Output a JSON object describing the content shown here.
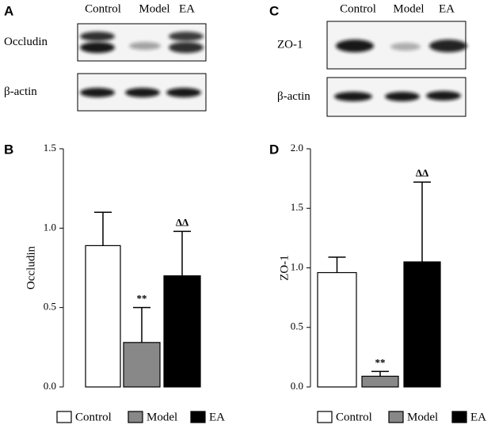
{
  "blots": [
    {
      "letter": "A",
      "lanes": [
        "Control",
        "Model",
        "EA"
      ],
      "rows": [
        "Occludin",
        "β-actin"
      ]
    },
    {
      "letter": "C",
      "lanes": [
        "Control",
        "Model",
        "EA"
      ],
      "rows": [
        "ZO-1",
        "β-actin"
      ]
    }
  ],
  "chart_data": [
    {
      "letter": "B",
      "type": "bar",
      "ylabel": "Occludin",
      "categories": [
        "Control",
        "Model",
        "EA"
      ],
      "colors": [
        "#ffffff",
        "#888888",
        "#000000"
      ],
      "values": [
        0.89,
        0.28,
        0.7
      ],
      "errors": [
        0.21,
        0.22,
        0.28
      ],
      "ylim": [
        0,
        1.5
      ],
      "yticks": [
        {
          "value": 0,
          "label": "0.0"
        },
        0.5,
        {
          "value": 1,
          "label": "1.0"
        },
        1.5
      ],
      "annotations": [
        {
          "category": "Model",
          "text": "**"
        },
        {
          "category": "EA",
          "text": "ΔΔ"
        }
      ]
    },
    {
      "letter": "D",
      "type": "bar",
      "ylabel": "ZO-1",
      "categories": [
        "Control",
        "Model",
        "EA"
      ],
      "colors": [
        "#ffffff",
        "#888888",
        "#000000"
      ],
      "values": [
        0.96,
        0.09,
        1.05
      ],
      "errors": [
        0.13,
        0.04,
        0.67
      ],
      "ylim": [
        0,
        2
      ],
      "yticks": [
        {
          "value": 0,
          "label": "0.0"
        },
        0.5,
        {
          "value": 1,
          "label": "1.0"
        },
        1.5,
        {
          "value": 2,
          "label": "2.0"
        }
      ],
      "annotations": [
        {
          "category": "Model",
          "text": "**"
        },
        {
          "category": "EA",
          "text": "ΔΔ"
        }
      ]
    }
  ]
}
